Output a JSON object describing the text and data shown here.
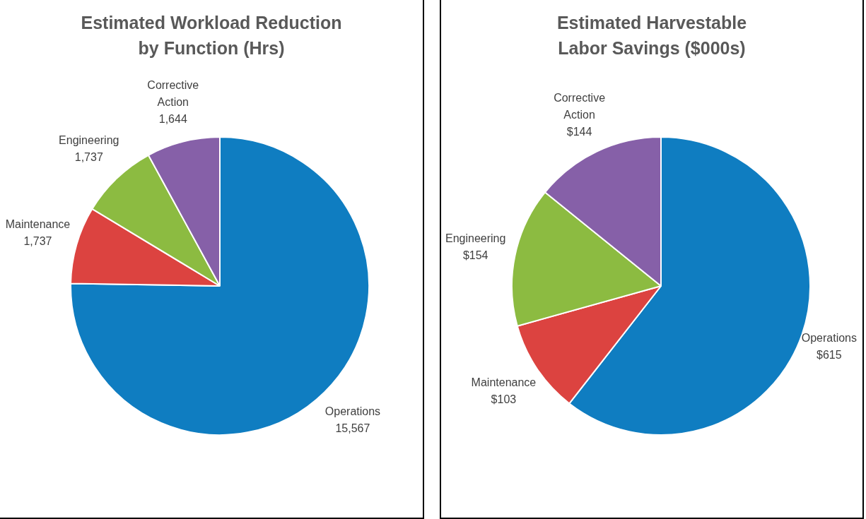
{
  "chart_data": [
    {
      "type": "pie",
      "title": "Estimated Workload Reduction\nby Function (Hrs)",
      "categories": [
        "Operations",
        "Maintenance",
        "Engineering",
        "Corrective Action"
      ],
      "values": [
        15567,
        1737,
        1737,
        1644
      ],
      "value_labels": [
        "15,567",
        "1,737",
        "1,737",
        "1,644"
      ],
      "colors": [
        "#0f7dc1",
        "#dc4340",
        "#8cbb41",
        "#8660a8"
      ],
      "legend": false
    },
    {
      "type": "pie",
      "title": "Estimated Harvestable\nLabor Savings ($000s)",
      "categories": [
        "Operations",
        "Maintenance",
        "Engineering",
        "Corrective Action"
      ],
      "values": [
        615,
        103,
        154,
        144
      ],
      "value_labels": [
        "$615",
        "$103",
        "$154",
        "$144"
      ],
      "colors": [
        "#0f7dc1",
        "#dc4340",
        "#8cbb41",
        "#8660a8"
      ],
      "legend": false
    }
  ]
}
